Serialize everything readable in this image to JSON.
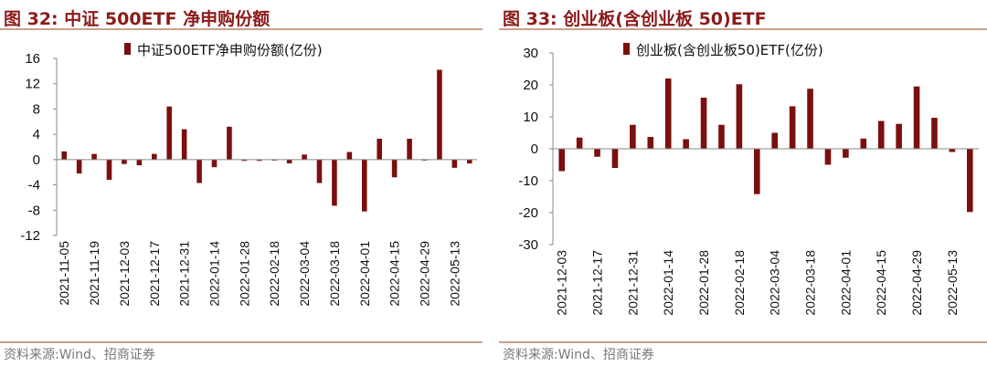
{
  "colors": {
    "bar": "#7b0f0f",
    "title": "#8b1a1a",
    "rule": "#c9a08a",
    "source": "#777777"
  },
  "left_panel": {
    "title": "图 32:  中证 500ETF 净申购份额",
    "source": "资料来源:Wind、招商证券"
  },
  "right_panel": {
    "title": "图 33:  创业板(含创业板 50)ETF",
    "source": "资料来源:Wind、招商证券"
  },
  "chart_data": [
    {
      "type": "bar",
      "title": "中证500ETF净申购份额",
      "legend": "中证500ETF净申购份额(亿份)",
      "legend_position": "top",
      "ylim": [
        -12,
        16
      ],
      "yticks": [
        16,
        12,
        8,
        4,
        0,
        -4,
        -8,
        -12
      ],
      "xtick_labels": [
        "2021-11-05",
        "2021-11-19",
        "2021-12-03",
        "2021-12-17",
        "2021-12-31",
        "2022-01-14",
        "2022-01-28",
        "2022-02-18",
        "2022-03-04",
        "2022-03-18",
        "2022-04-01",
        "2022-04-15",
        "2022-04-29",
        "2022-05-13"
      ],
      "values": [
        1.3,
        -2.2,
        0.9,
        -3.2,
        -0.7,
        -0.9,
        0.9,
        8.4,
        4.8,
        -3.7,
        -1.2,
        5.2,
        -0.2,
        -0.2,
        -0.1,
        -0.6,
        0.8,
        -3.7,
        -7.3,
        1.2,
        -8.2,
        3.3,
        -2.8,
        3.3,
        -0.1,
        14.2,
        -1.3,
        -0.6
      ]
    },
    {
      "type": "bar",
      "title": "创业板(含创业板50)ETF",
      "legend": "创业板(含创业板50)ETF(亿份)",
      "legend_position": "top",
      "ylim": [
        -30,
        30
      ],
      "yticks": [
        30,
        20,
        10,
        0,
        -10,
        -20,
        -30
      ],
      "xtick_labels": [
        "2021-12-03",
        "2021-12-17",
        "2021-12-31",
        "2022-01-14",
        "2022-01-28",
        "2022-02-18",
        "2022-03-04",
        "2022-03-18",
        "2022-04-01",
        "2022-04-15",
        "2022-04-29",
        "2022-05-13"
      ],
      "values": [
        -7,
        3.5,
        -2.5,
        -6,
        7.5,
        3.7,
        22,
        3,
        16,
        7.5,
        20.2,
        -14.2,
        5,
        13.3,
        18.8,
        -5,
        -2.8,
        3.2,
        8.7,
        7.8,
        19.5,
        9.7,
        -1,
        -19.8
      ]
    }
  ]
}
